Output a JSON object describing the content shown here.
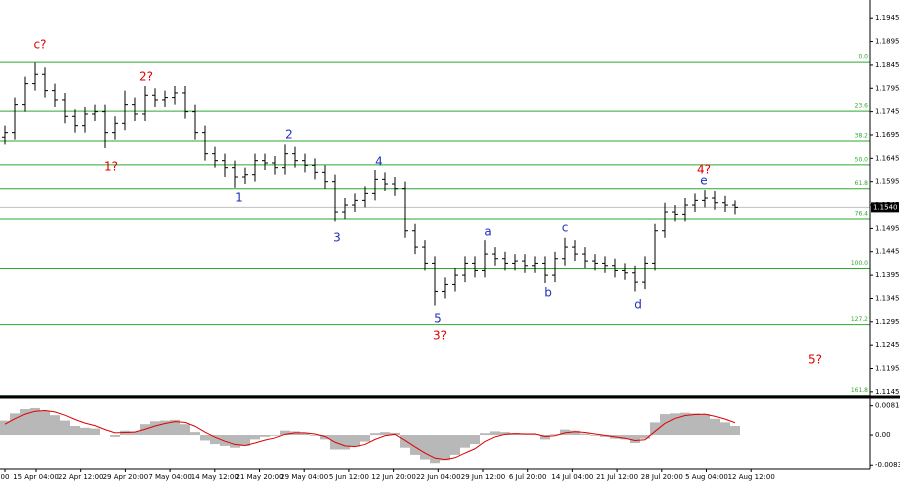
{
  "chart_data": [
    {
      "type": "ohlc",
      "color": "#000000",
      "open": [
        1.169,
        1.17,
        1.176,
        1.1805,
        1.1825,
        1.179,
        1.177,
        1.1735,
        1.1715,
        1.174,
        1.1745,
        1.17,
        1.172,
        1.176,
        1.174,
        1.178,
        1.177,
        1.1775,
        1.1785,
        1.1745,
        1.17,
        1.1655,
        1.164,
        1.1625,
        1.1605,
        1.161,
        1.164,
        1.1635,
        1.1625,
        1.1655,
        1.164,
        1.163,
        1.1615,
        1.1595,
        1.153,
        1.1545,
        1.1555,
        1.157,
        1.16,
        1.159,
        1.158,
        1.149,
        1.1455,
        1.142,
        1.136,
        1.1375,
        1.1395,
        1.142,
        1.1405,
        1.144,
        1.143,
        1.142,
        1.1425,
        1.1415,
        1.142,
        1.1395,
        1.143,
        1.1455,
        1.144,
        1.1425,
        1.142,
        1.1415,
        1.1405,
        1.14,
        1.138,
        1.142,
        1.149,
        1.153,
        1.1525,
        1.1545,
        1.1555,
        1.156,
        1.155,
        1.1545
      ],
      "high": [
        1.1715,
        1.1775,
        1.182,
        1.185,
        1.184,
        1.1805,
        1.1785,
        1.175,
        1.1755,
        1.176,
        1.176,
        1.1735,
        1.179,
        1.1775,
        1.18,
        1.1795,
        1.179,
        1.18,
        1.18,
        1.176,
        1.1715,
        1.167,
        1.1655,
        1.164,
        1.1625,
        1.1655,
        1.1655,
        1.165,
        1.1675,
        1.167,
        1.1655,
        1.1645,
        1.163,
        1.161,
        1.156,
        1.157,
        1.1585,
        1.162,
        1.1615,
        1.1605,
        1.1595,
        1.1505,
        1.147,
        1.1435,
        1.139,
        1.141,
        1.1435,
        1.1435,
        1.147,
        1.1455,
        1.1445,
        1.144,
        1.144,
        1.1435,
        1.1435,
        1.1445,
        1.1475,
        1.147,
        1.1455,
        1.144,
        1.1435,
        1.143,
        1.142,
        1.1415,
        1.1435,
        1.1505,
        1.155,
        1.1545,
        1.156,
        1.157,
        1.1577,
        1.1575,
        1.1565,
        1.1555
      ],
      "low": [
        1.1675,
        1.1685,
        1.1745,
        1.179,
        1.1775,
        1.1755,
        1.172,
        1.17,
        1.17,
        1.1725,
        1.1667,
        1.1685,
        1.1705,
        1.1725,
        1.1725,
        1.1755,
        1.1755,
        1.176,
        1.173,
        1.1685,
        1.164,
        1.1625,
        1.1605,
        1.1582,
        1.159,
        1.1595,
        1.162,
        1.161,
        1.161,
        1.1625,
        1.1615,
        1.16,
        1.158,
        1.151,
        1.1515,
        1.153,
        1.154,
        1.1555,
        1.1575,
        1.1565,
        1.1475,
        1.144,
        1.1405,
        1.133,
        1.1345,
        1.136,
        1.138,
        1.139,
        1.139,
        1.1415,
        1.1405,
        1.1405,
        1.14,
        1.14,
        1.1378,
        1.138,
        1.1415,
        1.1425,
        1.141,
        1.1405,
        1.14,
        1.139,
        1.1385,
        1.136,
        1.1365,
        1.1405,
        1.1475,
        1.151,
        1.151,
        1.153,
        1.154,
        1.1535,
        1.153,
        1.1525
      ],
      "close": [
        1.17,
        1.176,
        1.1805,
        1.1825,
        1.179,
        1.177,
        1.1735,
        1.1715,
        1.174,
        1.1745,
        1.17,
        1.172,
        1.176,
        1.174,
        1.178,
        1.177,
        1.1775,
        1.1785,
        1.1745,
        1.17,
        1.1655,
        1.164,
        1.1625,
        1.1605,
        1.161,
        1.164,
        1.1635,
        1.1625,
        1.1655,
        1.164,
        1.163,
        1.1615,
        1.1595,
        1.153,
        1.1545,
        1.1555,
        1.157,
        1.16,
        1.159,
        1.158,
        1.149,
        1.1455,
        1.142,
        1.136,
        1.1375,
        1.1395,
        1.142,
        1.1405,
        1.144,
        1.143,
        1.142,
        1.1425,
        1.1415,
        1.142,
        1.1395,
        1.143,
        1.1455,
        1.144,
        1.1425,
        1.142,
        1.1415,
        1.1405,
        1.14,
        1.138,
        1.142,
        1.149,
        1.153,
        1.1525,
        1.1545,
        1.1555,
        1.156,
        1.155,
        1.1545,
        1.154
      ],
      "ylim": [
        1.1134,
        1.1984
      ],
      "yticks": [
        1.1145,
        1.1195,
        1.1245,
        1.1295,
        1.1345,
        1.1395,
        1.1445,
        1.1495,
        1.1545,
        1.1595,
        1.1645,
        1.1695,
        1.1745,
        1.1795,
        1.1845,
        1.1895,
        1.1945
      ],
      "fib_color": "#2ea82e",
      "fib_levels": [
        {
          "label": "0.0",
          "value": 1.1851
        },
        {
          "label": "23.6",
          "value": 1.1746
        },
        {
          "label": "38.2",
          "value": 1.1682
        },
        {
          "label": "50.0",
          "value": 1.1631
        },
        {
          "label": "61.8",
          "value": 1.158
        },
        {
          "label": "76.4",
          "value": 1.1515
        },
        {
          "label": "100.0",
          "value": 1.1409
        },
        {
          "label": "127.2",
          "value": 1.1289
        },
        {
          "label": "161.8",
          "value": 1.1137
        }
      ],
      "last_price": {
        "value": 1.154,
        "label": "1.1540"
      },
      "annotations": [
        {
          "text": "c?",
          "color": "#e00000"
        },
        {
          "text": "1?",
          "color": "#e00000"
        },
        {
          "text": "2?",
          "color": "#e00000"
        },
        {
          "text": "1",
          "color": "#2030c0"
        },
        {
          "text": "2",
          "color": "#2030c0"
        },
        {
          "text": "3",
          "color": "#2030c0"
        },
        {
          "text": "4",
          "color": "#2030c0"
        },
        {
          "text": "5",
          "color": "#2030c0"
        },
        {
          "text": "3?",
          "color": "#e00000"
        },
        {
          "text": "a",
          "color": "#2030c0"
        },
        {
          "text": "b",
          "color": "#2030c0"
        },
        {
          "text": "c",
          "color": "#2030c0"
        },
        {
          "text": "d",
          "color": "#2030c0"
        },
        {
          "text": "e",
          "color": "#2030c0"
        },
        {
          "text": "4?",
          "color": "#e00000"
        },
        {
          "text": "5?",
          "color": "#e00000"
        }
      ],
      "x_labels": [
        "00",
        "15 Apr 04:00",
        "22 Apr 12:00",
        "29 Apr 20:00",
        "7 May 04:00",
        "14 May 12:00",
        "21 May 20:00",
        "29 May 04:00",
        "5 Jun 12:00",
        "12 Jun 20:00",
        "22 Jun 04:00",
        "29 Jun 12:00",
        "6 Jul 20:00",
        "14 Jul 04:00",
        "21 Jul 12:00",
        "28 Jul 20:00",
        "5 Aug 04:00",
        "12 Aug 12:00"
      ]
    },
    {
      "type": "oscillator",
      "histogram_color": "#b8b8b8",
      "signal_color": "#e00000",
      "histogram": [
        0.004,
        0.006,
        0.0072,
        0.0075,
        0.0068,
        0.0055,
        0.004,
        0.0025,
        0.002,
        0.0018,
        0.0,
        -0.0005,
        0.0012,
        0.001,
        0.003,
        0.0038,
        0.004,
        0.0042,
        0.003,
        0.0008,
        -0.0015,
        -0.0025,
        -0.003,
        -0.0035,
        -0.003,
        -0.0012,
        -0.0005,
        -0.0002,
        0.0012,
        0.001,
        0.0006,
        -0.0002,
        -0.0012,
        -0.004,
        -0.004,
        -0.0032,
        -0.0018,
        0.0005,
        0.0008,
        0.0006,
        -0.0035,
        -0.0055,
        -0.0068,
        -0.0078,
        -0.007,
        -0.0055,
        -0.0035,
        -0.0025,
        0.0005,
        0.001,
        0.0008,
        0.0005,
        0.0002,
        0.0002,
        -0.0012,
        0.0002,
        0.0015,
        0.0012,
        0.0004,
        -0.0002,
        -0.0005,
        -0.001,
        -0.0012,
        -0.0022,
        -0.001,
        0.0035,
        0.0058,
        0.006,
        0.0062,
        0.006,
        0.0058,
        0.0045,
        0.0035,
        0.0025
      ],
      "signal": [
        0.003,
        0.0045,
        0.0058,
        0.0066,
        0.0068,
        0.0064,
        0.0055,
        0.0043,
        0.0033,
        0.0026,
        0.0015,
        0.0006,
        0.0007,
        0.0008,
        0.0016,
        0.0025,
        0.0032,
        0.0037,
        0.0035,
        0.0024,
        0.0008,
        -0.0006,
        -0.0017,
        -0.0026,
        -0.0029,
        -0.0022,
        -0.0014,
        -0.0008,
        0.0002,
        0.0006,
        0.0006,
        0.0003,
        -0.0004,
        -0.002,
        -0.003,
        -0.0032,
        -0.0026,
        -0.0012,
        -0.0002,
        0.0002,
        -0.0015,
        -0.0033,
        -0.005,
        -0.0064,
        -0.0068,
        -0.0063,
        -0.005,
        -0.0038,
        -0.0018,
        -0.0005,
        0.0002,
        0.0004,
        0.0003,
        0.0003,
        -0.0004,
        -0.0002,
        0.0006,
        0.0009,
        0.0007,
        0.0003,
        -0.0001,
        -0.0005,
        -0.0009,
        -0.0015,
        -0.0013,
        0.001,
        0.0032,
        0.0046,
        0.0054,
        0.0057,
        0.0058,
        0.0052,
        0.0044,
        0.0034
      ],
      "ylim": [
        -0.0094,
        0.0097
      ],
      "yticks": [
        -0.00836,
        {
          "value": 0,
          "label": "0.00"
        },
        0.00814
      ]
    }
  ]
}
